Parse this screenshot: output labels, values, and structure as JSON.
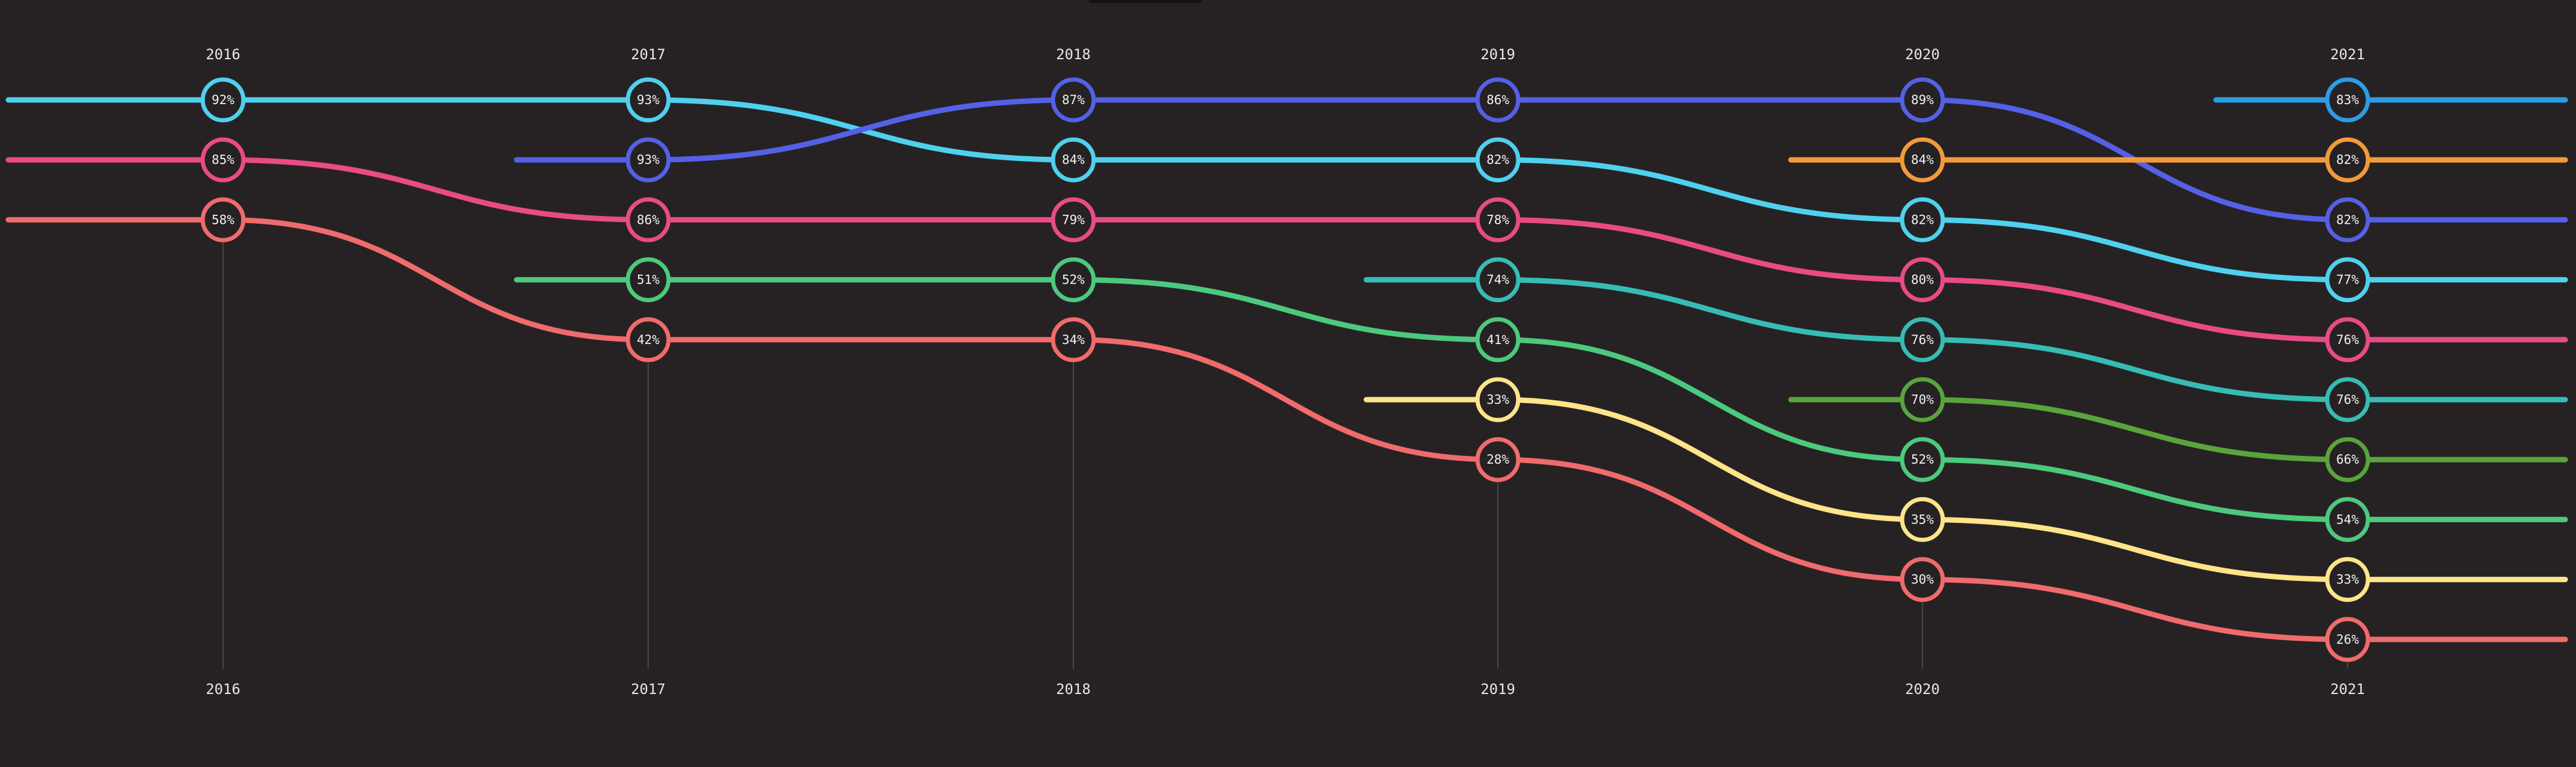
{
  "chart_data": {
    "type": "line",
    "title": "",
    "xlabel": "",
    "ylabel": "",
    "x": [
      "2016",
      "2017",
      "2018",
      "2019",
      "2020",
      "2021"
    ],
    "ranks": 10,
    "grid": false,
    "legend": "none",
    "series": [
      {
        "color": "#4fd1ee",
        "values": [
          92,
          93,
          84,
          82,
          82,
          77
        ],
        "ranks": [
          1,
          1,
          2,
          2,
          3,
          4
        ]
      },
      {
        "color": "#e94b86",
        "values": [
          85,
          86,
          79,
          78,
          80,
          76
        ],
        "ranks": [
          2,
          3,
          3,
          3,
          4,
          5
        ]
      },
      {
        "color": "#f06b6b",
        "values": [
          58,
          42,
          34,
          28,
          30,
          26
        ],
        "ranks": [
          3,
          5,
          5,
          7,
          9,
          10
        ]
      },
      {
        "color": "#5461e6",
        "values": [
          null,
          93,
          87,
          86,
          89,
          82
        ],
        "ranks": [
          null,
          2,
          1,
          1,
          1,
          3
        ]
      },
      {
        "color": "#4cc97d",
        "values": [
          null,
          51,
          52,
          41,
          52,
          54
        ],
        "ranks": [
          null,
          4,
          4,
          5,
          7,
          8
        ]
      },
      {
        "color": "#37bcb4",
        "values": [
          null,
          null,
          null,
          74,
          76,
          76
        ],
        "ranks": [
          null,
          null,
          null,
          4,
          5,
          6
        ]
      },
      {
        "color": "#ffe48a",
        "values": [
          null,
          null,
          null,
          33,
          35,
          33
        ],
        "ranks": [
          null,
          null,
          null,
          6,
          8,
          9
        ]
      },
      {
        "color": "#f29a3a",
        "values": [
          null,
          null,
          null,
          null,
          84,
          82
        ],
        "ranks": [
          null,
          null,
          null,
          null,
          2,
          2
        ]
      },
      {
        "color": "#5aa43c",
        "values": [
          null,
          null,
          null,
          null,
          70,
          66
        ],
        "ranks": [
          null,
          null,
          null,
          null,
          6,
          7
        ]
      },
      {
        "color": "#2d9ce6",
        "values": [
          null,
          null,
          null,
          null,
          null,
          83
        ],
        "ranks": [
          null,
          null,
          null,
          null,
          null,
          1
        ]
      }
    ]
  }
}
